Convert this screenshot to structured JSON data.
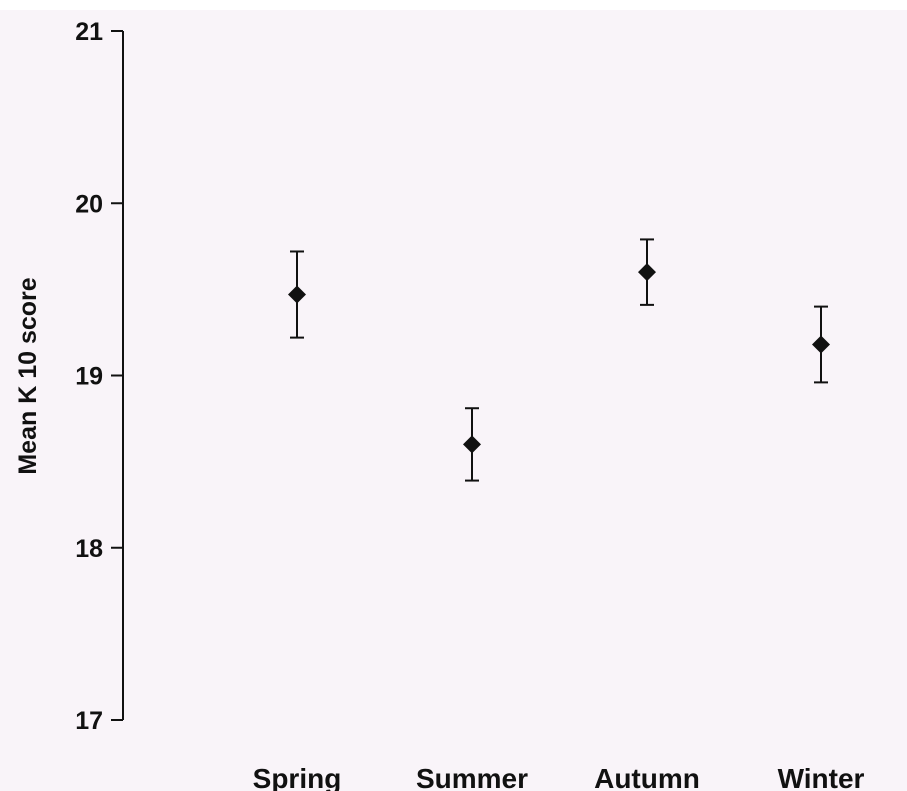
{
  "chart_data": {
    "type": "scatter",
    "title": "",
    "xlabel": "",
    "ylabel": "Mean K 10 score",
    "categories": [
      "Spring",
      "Summer",
      "Autumn",
      "Winter"
    ],
    "series": [
      {
        "values": [
          19.47,
          18.6,
          19.6,
          19.18
        ],
        "error_low": [
          19.22,
          18.39,
          19.41,
          18.96
        ],
        "error_high": [
          19.72,
          18.81,
          19.79,
          19.4
        ]
      }
    ],
    "ylim": [
      17,
      21
    ],
    "yticks": [
      "17",
      "18",
      "19",
      "20",
      "21"
    ],
    "grid": false,
    "legend": "none",
    "colors": {
      "background": "#F9F4F9",
      "marker": "#111111",
      "axis": "#111111"
    },
    "marker_shape": "diamond"
  }
}
